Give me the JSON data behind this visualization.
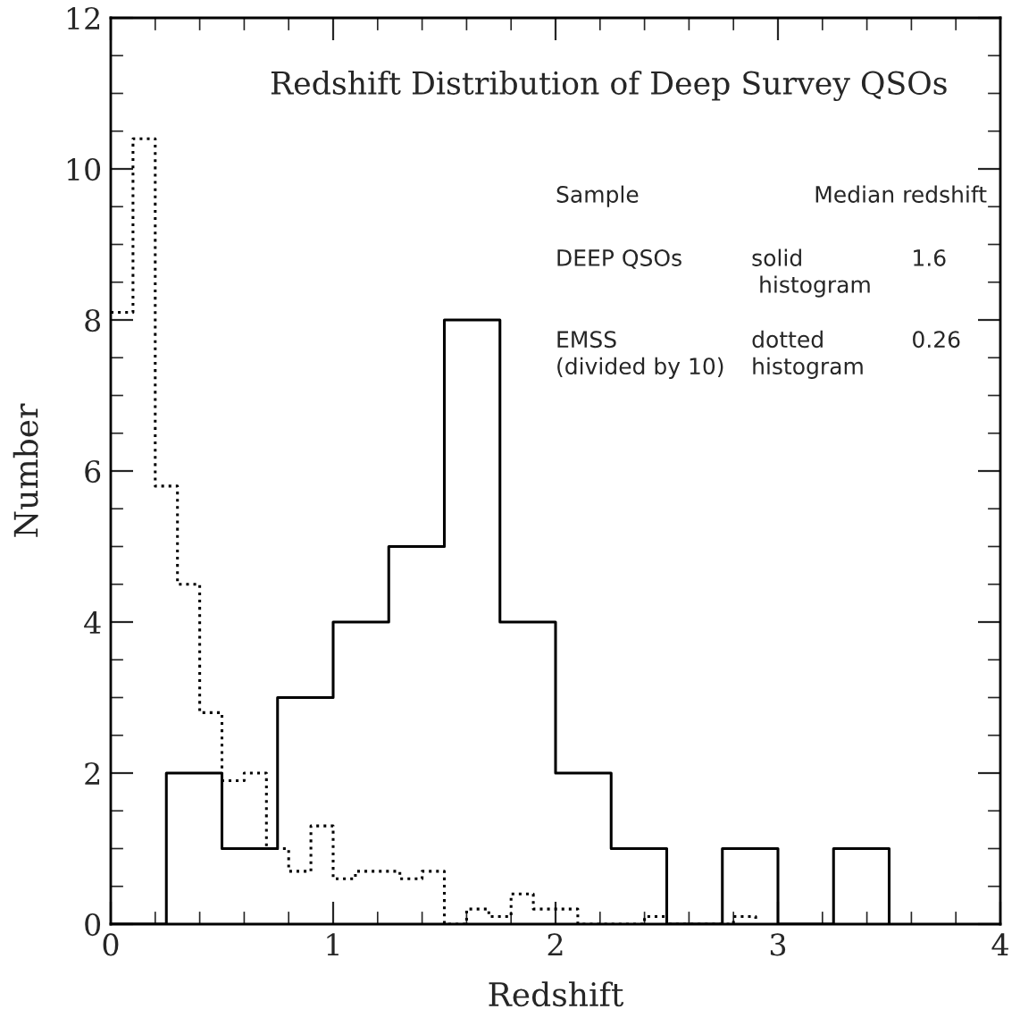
{
  "chart_data": {
    "type": "step",
    "title": "Redshift Distribution of Deep Survey QSOs",
    "xlabel": "Redshift",
    "ylabel": "Number",
    "series": [
      {
        "color": "#000000",
        "line_style": "solid",
        "x": [
          0,
          0.25,
          0.5,
          0.75,
          1,
          1.25,
          1.5,
          1.75,
          2,
          2.25,
          2.5,
          2.75,
          3,
          3.25,
          3.5
        ],
        "values": [
          0,
          2,
          1,
          3,
          4,
          5,
          8,
          4,
          2,
          1,
          0,
          1,
          0,
          1,
          0
        ]
      },
      {
        "color": "#000000",
        "line_style": "dotted",
        "x": [
          0,
          0.1,
          0.2,
          0.3,
          0.4,
          0.5,
          0.6,
          0.7,
          0.8,
          0.9,
          1.0,
          1.1,
          1.2,
          1.3,
          1.4,
          1.5,
          1.6,
          1.7,
          1.8,
          1.9,
          2.0,
          2.1,
          2.2,
          2.3,
          2.4,
          2.5,
          2.6,
          2.7,
          2.8,
          2.9
        ],
        "values": [
          8.1,
          10.4,
          5.8,
          4.5,
          2.8,
          1.9,
          2.0,
          1.0,
          0.7,
          1.3,
          0.6,
          0.7,
          0.7,
          0.6,
          0.7,
          0,
          0.2,
          0.1,
          0.4,
          0.2,
          0.2,
          0,
          0,
          0,
          0.1,
          0,
          0,
          0,
          0.1,
          0
        ]
      }
    ],
    "annotations": [
      "Sample",
      "Median redshift",
      "DEEP QSOs",
      "solid\n histogram",
      "1.6",
      "EMSS\n(divided by 10)",
      "dotted\nhistogram",
      "0.26"
    ],
    "xlim": [
      0,
      4
    ],
    "ylim": [
      0,
      12
    ],
    "xticks": [
      0,
      1,
      2,
      3,
      4
    ],
    "yticks": [
      0,
      2,
      4,
      6,
      8,
      10,
      12
    ],
    "grid": false,
    "legend": false
  }
}
